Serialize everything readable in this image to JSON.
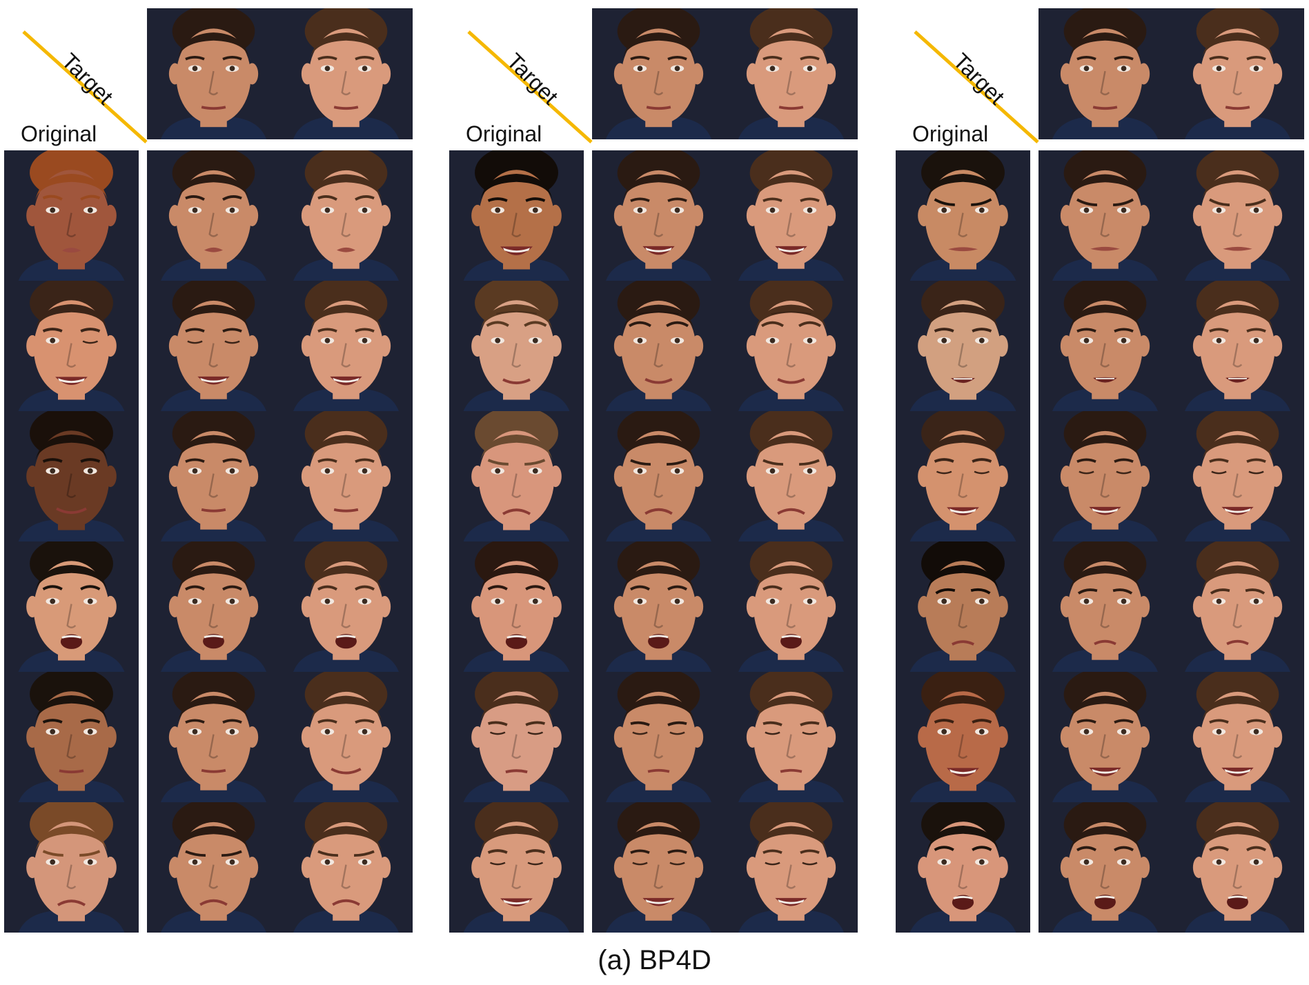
{
  "labels": {
    "original": "Original",
    "target": "Target",
    "caption": "(a) BP4D"
  },
  "colors": {
    "diagonal": "#f5b800",
    "background": "#1e2233"
  },
  "panels": [
    {
      "targets": [
        {
          "skin": "#c98a68",
          "hair": "#2a1a12",
          "expr": "neutral"
        },
        {
          "skin": "#d99a7c",
          "hair": "#4a2e1c",
          "expr": "neutral"
        }
      ],
      "rows": [
        {
          "original": {
            "skin": "#a0563c",
            "hair": "#9a4a20",
            "expr": "pursed"
          },
          "results": [
            "pursed",
            "pursed"
          ]
        },
        {
          "original": {
            "skin": "#d89270",
            "hair": "#3a2418",
            "expr": "wink-smile"
          },
          "results": [
            "smile-closed",
            "smile"
          ]
        },
        {
          "original": {
            "skin": "#6a3a24",
            "hair": "#1a100a",
            "expr": "smile-closed-mouth"
          },
          "results": [
            "neutral",
            "neutral"
          ]
        },
        {
          "original": {
            "skin": "#d89a78",
            "hair": "#1a120c",
            "expr": "open-mouth"
          },
          "results": [
            "open-mouth",
            "open-mouth"
          ]
        },
        {
          "original": {
            "skin": "#a86a48",
            "hair": "#1a120c",
            "expr": "neutral"
          },
          "results": [
            "neutral",
            "smile-closed-mouth"
          ]
        },
        {
          "original": {
            "skin": "#d4967a",
            "hair": "#7a4a28",
            "expr": "frown"
          },
          "results": [
            "frown",
            "frown"
          ]
        }
      ]
    },
    {
      "targets": [
        {
          "skin": "#c98a68",
          "hair": "#2a1a12",
          "expr": "neutral"
        },
        {
          "skin": "#d99a7c",
          "hair": "#4a2e1c",
          "expr": "neutral"
        }
      ],
      "rows": [
        {
          "original": {
            "skin": "#b47048",
            "hair": "#120c08",
            "expr": "smile"
          },
          "results": [
            "smile",
            "smile"
          ]
        },
        {
          "original": {
            "skin": "#d8a084",
            "hair": "#5a3a22",
            "expr": "raised-brows"
          },
          "results": [
            "raised-brows",
            "raised-brows"
          ]
        },
        {
          "original": {
            "skin": "#d8967c",
            "hair": "#6a4a30",
            "expr": "frown"
          },
          "results": [
            "frown",
            "frown"
          ]
        },
        {
          "original": {
            "skin": "#d8967a",
            "hair": "#2a1810",
            "expr": "open-mouth"
          },
          "results": [
            "open-mouth",
            "open-mouth"
          ]
        },
        {
          "original": {
            "skin": "#d89c84",
            "hair": "#4a2e1c",
            "expr": "eyes-closed"
          },
          "results": [
            "eyes-closed",
            "eyes-closed"
          ]
        },
        {
          "original": {
            "skin": "#d89a7c",
            "hair": "#4a2e1c",
            "expr": "smile-closed"
          },
          "results": [
            "smile-closed",
            "smile-closed"
          ]
        }
      ]
    },
    {
      "targets": [
        {
          "skin": "#c98a68",
          "hair": "#2a1a12",
          "expr": "neutral"
        },
        {
          "skin": "#d99a7c",
          "hair": "#4a2e1c",
          "expr": "neutral"
        }
      ],
      "rows": [
        {
          "original": {
            "skin": "#c88a64",
            "hair": "#1a120c",
            "expr": "grimace"
          },
          "results": [
            "grimace",
            "grimace"
          ]
        },
        {
          "original": {
            "skin": "#d2a080",
            "hair": "#3a2418",
            "expr": "talk"
          },
          "results": [
            "talk",
            "talk"
          ]
        },
        {
          "original": {
            "skin": "#d4926e",
            "hair": "#3a2418",
            "expr": "smile-closed"
          },
          "results": [
            "smile-closed",
            "smile-closed"
          ]
        },
        {
          "original": {
            "skin": "#b87c58",
            "hair": "#120c08",
            "expr": "sad"
          },
          "results": [
            "sad",
            "sad"
          ]
        },
        {
          "original": {
            "skin": "#b86a48",
            "hair": "#3a2012",
            "expr": "smile"
          },
          "results": [
            "smile",
            "smile"
          ]
        },
        {
          "original": {
            "skin": "#d8967a",
            "hair": "#1a120c",
            "expr": "open-mouth"
          },
          "results": [
            "open-mouth",
            "open-mouth"
          ]
        }
      ]
    }
  ]
}
